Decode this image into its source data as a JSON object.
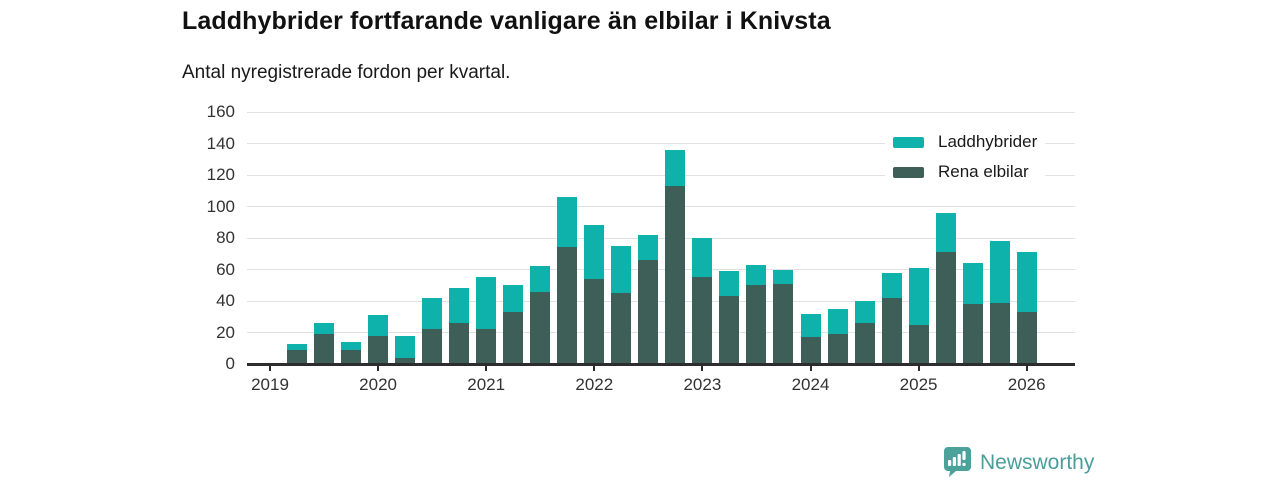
{
  "header": {
    "title": "Laddhybrider fortfarande vanligare än elbilar i Knivsta",
    "subtitle": "Antal nyregistrerade fordon per kvartal."
  },
  "chart_data": {
    "type": "bar",
    "stacked": true,
    "title": "Laddhybrider fortfarande vanligare än elbilar i Knivsta",
    "subtitle": "Antal nyregistrerade fordon per kvartal.",
    "xlabel": "",
    "ylabel": "",
    "categories": [
      "2019 Q1",
      "2019 Q2",
      "2019 Q3",
      "2019 Q4",
      "2020 Q1",
      "2020 Q2",
      "2020 Q3",
      "2020 Q4",
      "2021 Q1",
      "2021 Q2",
      "2021 Q3",
      "2021 Q4",
      "2022 Q1",
      "2022 Q2",
      "2022 Q3",
      "2022 Q4",
      "2023 Q1",
      "2023 Q2",
      "2023 Q3",
      "2023 Q4",
      "2024 Q1",
      "2024 Q2",
      "2024 Q3",
      "2024 Q4",
      "2025 Q1",
      "2025 Q2",
      "2025 Q3",
      "2025 Q4",
      "2026 Q1"
    ],
    "series": [
      {
        "name": "Laddhybrider",
        "color": "#0fb2aa",
        "stack_position": "top",
        "values": [
          0,
          4,
          7,
          5,
          13,
          14,
          20,
          22,
          33,
          17,
          16,
          32,
          34,
          30,
          16,
          23,
          25,
          16,
          13,
          9,
          15,
          16,
          14,
          16,
          36,
          25,
          26,
          39,
          38
        ]
      },
      {
        "name": "Rena elbilar",
        "color": "#3d5f57",
        "stack_position": "bottom",
        "values": [
          0,
          9,
          19,
          9,
          18,
          4,
          22,
          26,
          22,
          33,
          46,
          74,
          54,
          45,
          66,
          113,
          55,
          43,
          50,
          51,
          17,
          19,
          26,
          42,
          25,
          71,
          38,
          39,
          33
        ]
      }
    ],
    "ylim": [
      0,
      160
    ],
    "yticks": [
      0,
      20,
      40,
      60,
      80,
      100,
      120,
      140,
      160
    ],
    "year_ticks": [
      {
        "label": "2019",
        "index": 0
      },
      {
        "label": "2020",
        "index": 4
      },
      {
        "label": "2021",
        "index": 8
      },
      {
        "label": "2022",
        "index": 12
      },
      {
        "label": "2023",
        "index": 16
      },
      {
        "label": "2024",
        "index": 20
      },
      {
        "label": "2025",
        "index": 24
      },
      {
        "label": "2026",
        "index": 28
      }
    ],
    "grid": "horizontal",
    "legend_position": "top-right"
  },
  "colors": {
    "hybrid": "#0fb2aa",
    "electric": "#3d5f57",
    "gridline": "#e1e1e1",
    "axis": "#2d2d2d",
    "tick_text": "#333333",
    "title_text": "#111111",
    "brand": "#4a9e99"
  },
  "footer": {
    "brand": "Newsworthy"
  }
}
